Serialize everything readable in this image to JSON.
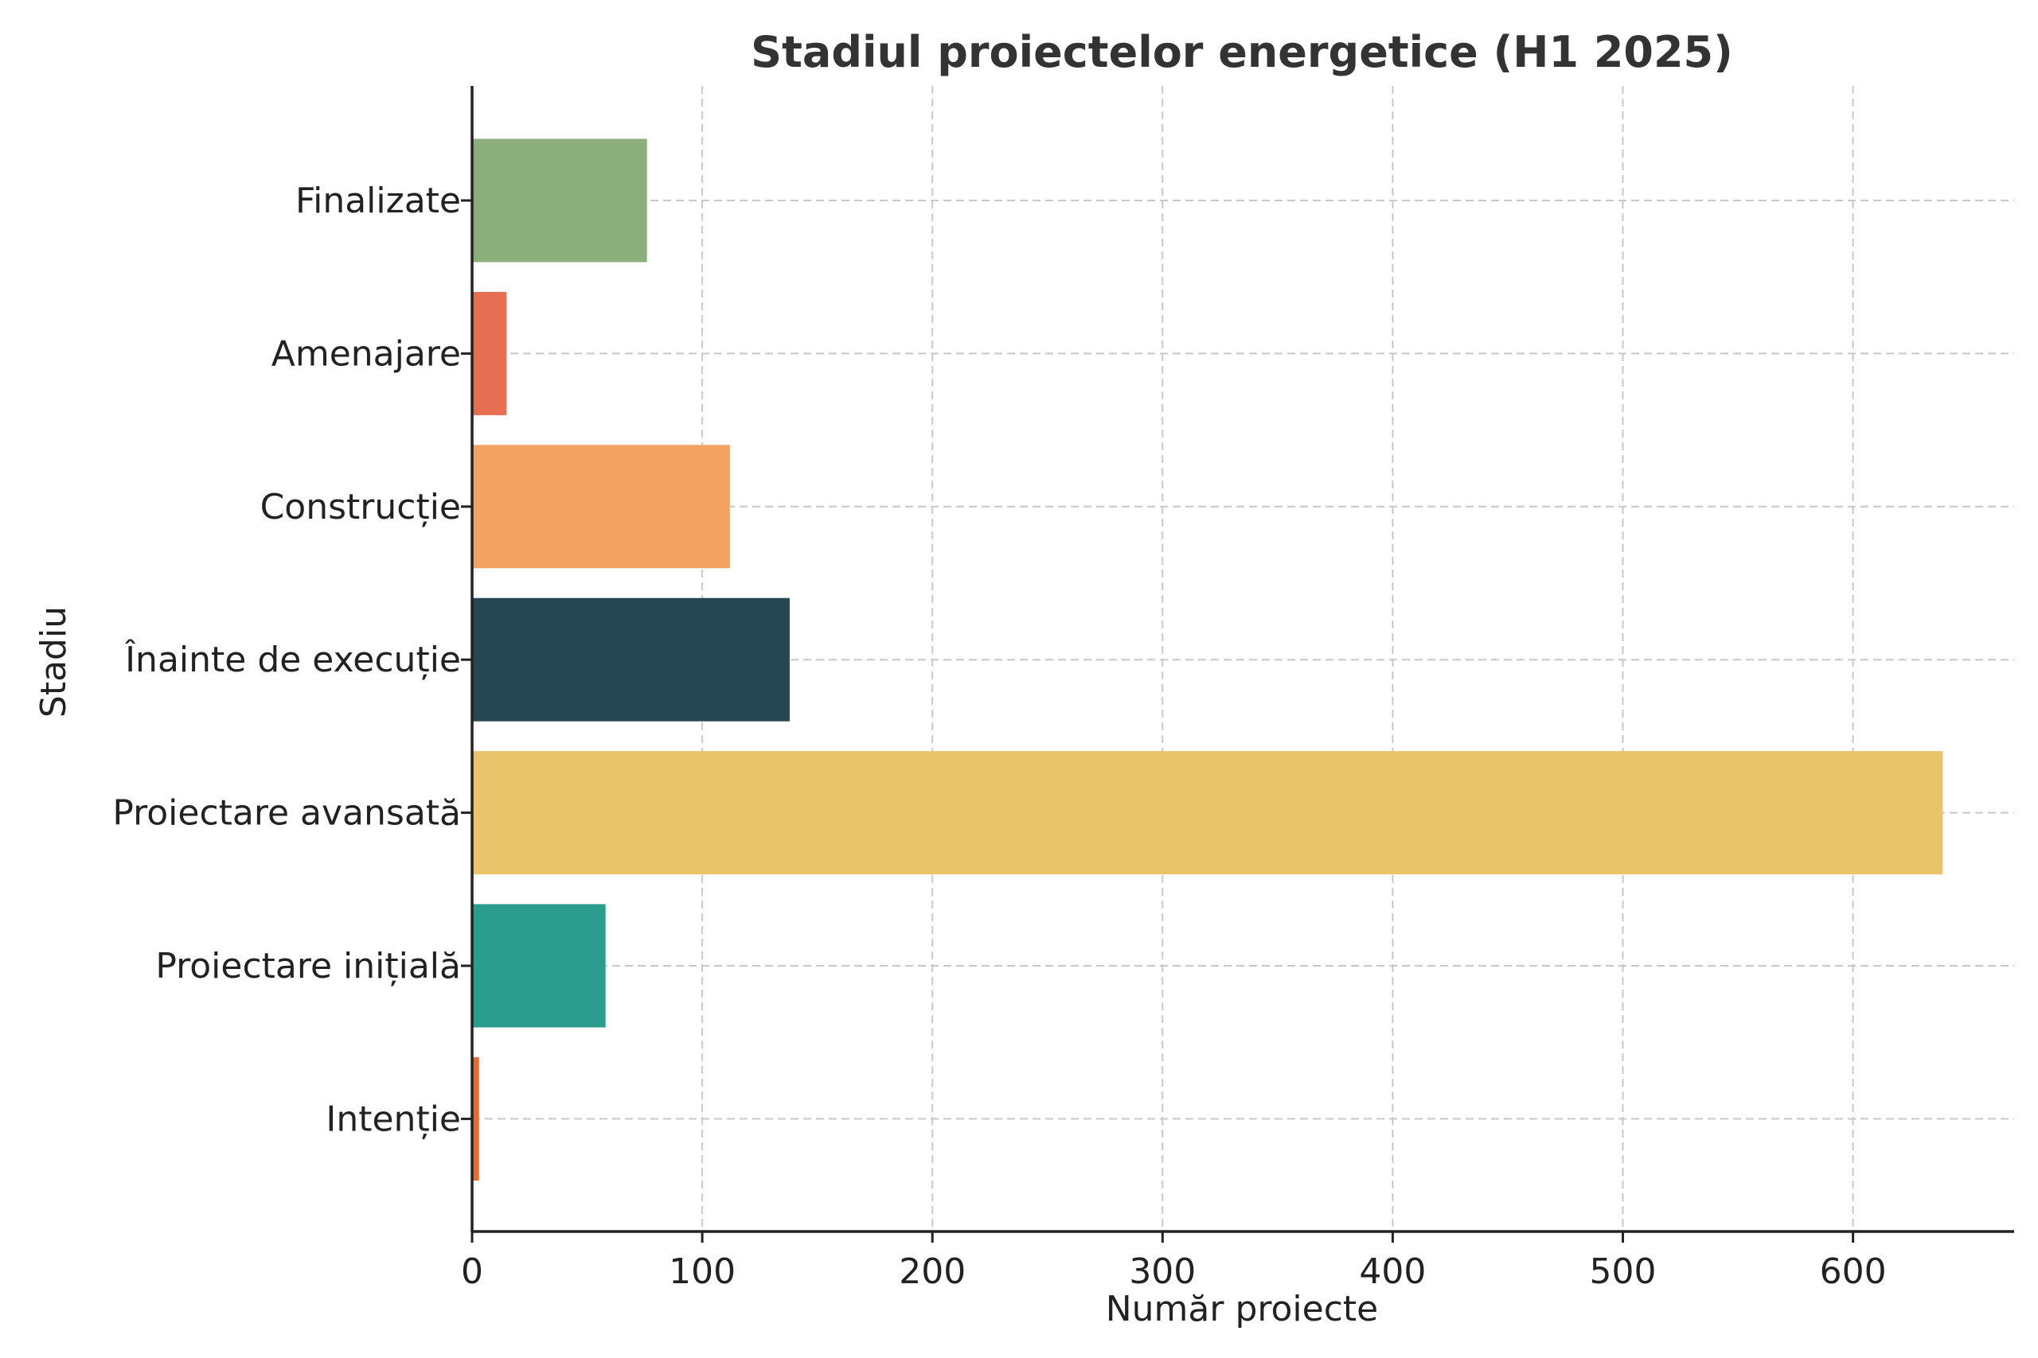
{
  "chart_data": {
    "type": "bar",
    "orientation": "horizontal",
    "title": "Stadiul proiectelor energetice (H1 2025)",
    "xlabel": "Număr proiecte",
    "ylabel": "Stadiu",
    "xlim": [
      0,
      670
    ],
    "xticks": [
      0,
      100,
      200,
      300,
      400,
      500,
      600
    ],
    "grid": true,
    "categories": [
      "Finalizate",
      "Amenajare",
      "Construcție",
      "Înainte de execuție",
      "Proiectare avansată",
      "Proiectare inițială",
      "Intenție"
    ],
    "values": [
      76,
      15,
      112,
      138,
      639,
      58,
      3
    ],
    "colors": [
      "#8aaf7b",
      "#e76f51",
      "#f4a261",
      "#264653",
      "#e9c46a",
      "#2a9d8f",
      "#e86a2c"
    ]
  }
}
